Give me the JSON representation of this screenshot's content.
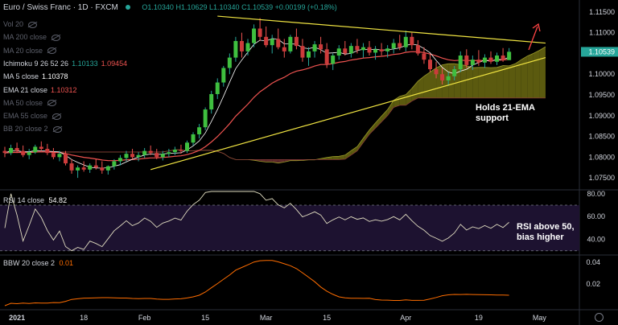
{
  "header": {
    "title": "Euro / Swiss Franc · 1D · FXCM",
    "open_label": "O",
    "open": "1.10340",
    "high_label": "H",
    "high": "1.10629",
    "low_label": "L",
    "low": "1.10340",
    "close_label": "C",
    "close": "1.10539",
    "change": "+0.00199 (+0.18%)"
  },
  "legend": [
    {
      "name": "Vol 20",
      "value": "",
      "hidden": true
    },
    {
      "name": "MA 200 close",
      "value": "",
      "hidden": true
    },
    {
      "name": "MA 20 close",
      "value": "",
      "hidden": true
    },
    {
      "name": "Ichimoku 9 26 52 26",
      "value": "1.10133",
      "value2": "1.09454",
      "color": "#26a69a",
      "color2": "#ef5350"
    },
    {
      "name": "MA 5 close",
      "value": "1.10378",
      "color": "#ffffff"
    },
    {
      "name": "EMA 21 close",
      "value": "1.10312",
      "color": "#ef5350"
    },
    {
      "name": "MA 50 close",
      "value": "",
      "hidden": true
    },
    {
      "name": "EMA 55 close",
      "value": "",
      "hidden": true
    },
    {
      "name": "BB 20 close 2",
      "value": "",
      "hidden": true
    }
  ],
  "annotations": {
    "support_line1": "Holds 21-EMA",
    "support_line2": "support",
    "rsi_line1": "RSI above 50,",
    "rsi_line2": "bias higher"
  },
  "rsi_label": {
    "name": "RSI 14 close",
    "value": "54.82"
  },
  "bbw_label": {
    "name": "BBW 20 close 2",
    "value": "0.01"
  },
  "chart_data": {
    "type": "candlestick",
    "price_axis": {
      "ticks": [
        "1.11500",
        "1.11000",
        "1.10500",
        "1.10000",
        "1.09500",
        "1.09000",
        "1.08500",
        "1.08000",
        "1.07500"
      ],
      "ylim": [
        1.0725,
        1.1175
      ],
      "last_price": "1.10539"
    },
    "rsi_axis": {
      "ticks": [
        "80.00",
        "60.00",
        "40.00"
      ],
      "ylim": [
        27,
        82
      ]
    },
    "bbw_axis": {
      "ticks": [
        "0.04",
        "0.02"
      ],
      "ylim": [
        -0.003,
        0.046
      ]
    },
    "x_ticks": [
      {
        "label": "2021",
        "index": 2
      },
      {
        "label": "18",
        "index": 13
      },
      {
        "label": "Feb",
        "index": 23
      },
      {
        "label": "15",
        "index": 33
      },
      {
        "label": "Mar",
        "index": 43
      },
      {
        "label": "15",
        "index": 53
      },
      {
        "label": "Apr",
        "index": 66
      },
      {
        "label": "19",
        "index": 78
      },
      {
        "label": "May",
        "index": 88
      }
    ],
    "candles": [
      [
        1.0815,
        1.0825,
        1.08,
        1.081
      ],
      [
        1.081,
        1.083,
        1.0805,
        1.0822
      ],
      [
        1.0822,
        1.0835,
        1.081,
        1.0815
      ],
      [
        1.0815,
        1.0828,
        1.08,
        1.0805
      ],
      [
        1.0805,
        1.082,
        1.0795,
        1.0812
      ],
      [
        1.0812,
        1.083,
        1.0808,
        1.0825
      ],
      [
        1.0825,
        1.0838,
        1.0815,
        1.082
      ],
      [
        1.082,
        1.0832,
        1.0805,
        1.081
      ],
      [
        1.081,
        1.0822,
        1.0795,
        1.08
      ],
      [
        1.08,
        1.0815,
        1.079,
        1.0808
      ],
      [
        1.0808,
        1.0815,
        1.078,
        1.0785
      ],
      [
        1.0785,
        1.0795,
        1.076,
        1.0768
      ],
      [
        1.0768,
        1.078,
        1.075,
        1.0775
      ],
      [
        1.0775,
        1.079,
        1.0765,
        1.077
      ],
      [
        1.077,
        1.0785,
        1.0762,
        1.078
      ],
      [
        1.078,
        1.0795,
        1.077,
        1.0775
      ],
      [
        1.0775,
        1.079,
        1.076,
        1.0768
      ],
      [
        1.0768,
        1.078,
        1.0758,
        1.0778
      ],
      [
        1.0778,
        1.0795,
        1.077,
        1.079
      ],
      [
        1.079,
        1.0805,
        1.078,
        1.0798
      ],
      [
        1.0798,
        1.0815,
        1.079,
        1.0808
      ],
      [
        1.0808,
        1.082,
        1.0795,
        1.08
      ],
      [
        1.08,
        1.0812,
        1.079,
        1.0805
      ],
      [
        1.0805,
        1.0822,
        1.0798,
        1.0815
      ],
      [
        1.0815,
        1.0828,
        1.0805,
        1.081
      ],
      [
        1.081,
        1.082,
        1.0795,
        1.08
      ],
      [
        1.08,
        1.0815,
        1.0792,
        1.0808
      ],
      [
        1.0808,
        1.082,
        1.08,
        1.0812
      ],
      [
        1.0812,
        1.0825,
        1.0805,
        1.0818
      ],
      [
        1.0818,
        1.083,
        1.0808,
        1.0815
      ],
      [
        1.0815,
        1.084,
        1.081,
        1.0835
      ],
      [
        1.0835,
        1.086,
        1.0828,
        1.0855
      ],
      [
        1.0855,
        1.088,
        1.0845,
        1.0872
      ],
      [
        1.0872,
        1.092,
        1.0865,
        1.0915
      ],
      [
        1.0915,
        1.096,
        1.0905,
        1.0952
      ],
      [
        1.0952,
        1.099,
        1.094,
        1.098
      ],
      [
        1.098,
        1.102,
        1.097,
        1.1015
      ],
      [
        1.1015,
        1.105,
        1.1,
        1.104
      ],
      [
        1.104,
        1.109,
        1.103,
        1.108
      ],
      [
        1.108,
        1.11,
        1.104,
        1.1055
      ],
      [
        1.1055,
        1.1085,
        1.1045,
        1.1075
      ],
      [
        1.1075,
        1.112,
        1.1065,
        1.111
      ],
      [
        1.111,
        1.1135,
        1.108,
        1.109
      ],
      [
        1.109,
        1.1115,
        1.1065,
        1.107
      ],
      [
        1.107,
        1.1095,
        1.105,
        1.1085
      ],
      [
        1.1085,
        1.111,
        1.106,
        1.1065
      ],
      [
        1.1065,
        1.1085,
        1.104,
        1.1055
      ],
      [
        1.1055,
        1.1095,
        1.105,
        1.109
      ],
      [
        1.109,
        1.111,
        1.106,
        1.1068
      ],
      [
        1.1068,
        1.1085,
        1.103,
        1.104
      ],
      [
        1.104,
        1.1065,
        1.102,
        1.1055
      ],
      [
        1.1055,
        1.108,
        1.104,
        1.1072
      ],
      [
        1.1072,
        1.109,
        1.105,
        1.106
      ],
      [
        1.106,
        1.1075,
        1.1015,
        1.1025
      ],
      [
        1.1025,
        1.105,
        1.101,
        1.1045
      ],
      [
        1.1045,
        1.107,
        1.1035,
        1.1062
      ],
      [
        1.1062,
        1.108,
        1.1045,
        1.105
      ],
      [
        1.105,
        1.1075,
        1.104,
        1.1068
      ],
      [
        1.1068,
        1.1085,
        1.105,
        1.1058
      ],
      [
        1.1058,
        1.1075,
        1.104,
        1.1065
      ],
      [
        1.1065,
        1.108,
        1.1045,
        1.1052
      ],
      [
        1.1052,
        1.1068,
        1.1035,
        1.106
      ],
      [
        1.106,
        1.1075,
        1.1045,
        1.1055
      ],
      [
        1.1055,
        1.107,
        1.104,
        1.1062
      ],
      [
        1.1062,
        1.1085,
        1.105,
        1.1075
      ],
      [
        1.1075,
        1.1095,
        1.1058,
        1.1065
      ],
      [
        1.1065,
        1.1105,
        1.1055,
        1.109
      ],
      [
        1.109,
        1.11,
        1.106,
        1.107
      ],
      [
        1.107,
        1.1082,
        1.1045,
        1.105
      ],
      [
        1.105,
        1.1065,
        1.1025,
        1.1035
      ],
      [
        1.1035,
        1.105,
        1.1005,
        1.1012
      ],
      [
        1.1012,
        1.103,
        1.099,
        1.1
      ],
      [
        1.1,
        1.1015,
        1.0975,
        1.0985
      ],
      [
        1.0985,
        1.1005,
        1.0972,
        1.0995
      ],
      [
        1.0995,
        1.102,
        1.0985,
        1.1012
      ],
      [
        1.1012,
        1.1055,
        1.1005,
        1.1045
      ],
      [
        1.1045,
        1.106,
        1.1015,
        1.1022
      ],
      [
        1.1022,
        1.1045,
        1.101,
        1.1035
      ],
      [
        1.1035,
        1.1058,
        1.102,
        1.1028
      ],
      [
        1.1028,
        1.1048,
        1.1015,
        1.104
      ],
      [
        1.104,
        1.1055,
        1.1025,
        1.103
      ],
      [
        1.103,
        1.1052,
        1.1022,
        1.1045
      ],
      [
        1.1045,
        1.1063,
        1.103,
        1.1034
      ],
      [
        1.1034,
        1.1063,
        1.1034,
        1.1054
      ]
    ],
    "trendlines": [
      {
        "from": [
          35,
          1.114
        ],
        "to": [
          89,
          1.1075
        ],
        "color": "#f0e442"
      },
      {
        "from": [
          24,
          1.077
        ],
        "to": [
          89,
          1.104
        ],
        "color": "#f0e442"
      }
    ]
  }
}
